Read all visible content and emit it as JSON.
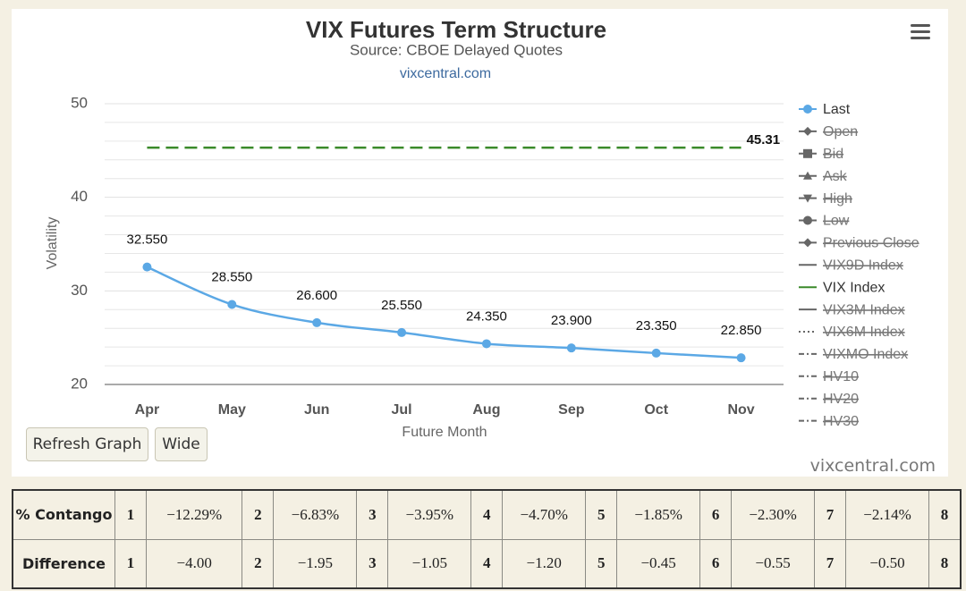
{
  "chart_data": {
    "type": "line",
    "title": "VIX Futures Term Structure",
    "subtitle": "Source: CBOE Delayed Quotes",
    "link": "vixcentral.com",
    "x_label": "Future Month",
    "y_label": "Volatility",
    "categories": [
      "Apr",
      "May",
      "Jun",
      "Jul",
      "Aug",
      "Sep",
      "Oct",
      "Nov"
    ],
    "ylim": [
      20,
      50
    ],
    "yticks": [
      20,
      30,
      40,
      50
    ],
    "minor_yticks": [
      22,
      24,
      26,
      28,
      32,
      34,
      36,
      38,
      42,
      44,
      46,
      48
    ],
    "grid": true,
    "legend": "right",
    "series": [
      {
        "name": "Last",
        "color": "#5ba8e5",
        "symbol": "circle",
        "visible": true,
        "values": [
          32.55,
          28.55,
          26.6,
          25.55,
          24.35,
          23.9,
          23.35,
          22.85
        ],
        "value_labels": [
          "32.550",
          "28.550",
          "26.600",
          "25.550",
          "24.350",
          "23.900",
          "23.350",
          "22.850"
        ]
      },
      {
        "name": "Open",
        "symbol": "diamond",
        "visible": false
      },
      {
        "name": "Bid",
        "symbol": "square",
        "visible": false
      },
      {
        "name": "Ask",
        "symbol": "triangle",
        "visible": false
      },
      {
        "name": "High",
        "symbol": "triangle-down",
        "visible": false
      },
      {
        "name": "Low",
        "symbol": "circle",
        "visible": false
      },
      {
        "name": "Previous Close",
        "symbol": "diamond",
        "visible": false
      },
      {
        "name": "VIX9D Index",
        "symbol": "solid",
        "visible": false
      },
      {
        "name": "VIX Index",
        "color": "#3a8a2a",
        "symbol": "solid",
        "visible": true,
        "dash": true,
        "values": [
          45.31,
          45.31,
          45.31,
          45.31,
          45.31,
          45.31,
          45.31,
          45.31
        ]
      },
      {
        "name": "VIX3M Index",
        "symbol": "solid",
        "visible": false
      },
      {
        "name": "VIX6M Index",
        "symbol": "dotted",
        "visible": false
      },
      {
        "name": "VIXMO Index",
        "symbol": "dashdot",
        "visible": false
      },
      {
        "name": "HV10",
        "symbol": "dashdot",
        "visible": false
      },
      {
        "name": "HV20",
        "symbol": "dashdot",
        "visible": false
      },
      {
        "name": "HV30",
        "symbol": "dashdot",
        "visible": false
      }
    ]
  },
  "buttons": [
    "Refresh Graph",
    "Wide"
  ],
  "watermark": "vixcentral.com",
  "table": {
    "rows": [
      [
        "% Contango",
        "1",
        "−12.29%",
        "2",
        "−6.83%",
        "3",
        "−3.95%",
        "4",
        "−4.70%",
        "5",
        "−1.85%",
        "6",
        "−2.30%",
        "7",
        "−2.14%",
        "8"
      ],
      [
        "Difference",
        "1",
        "−4.00",
        "2",
        "−1.95",
        "3",
        "−1.05",
        "4",
        "−1.20",
        "5",
        "−0.45",
        "6",
        "−0.55",
        "7",
        "−0.50",
        "8"
      ]
    ]
  }
}
